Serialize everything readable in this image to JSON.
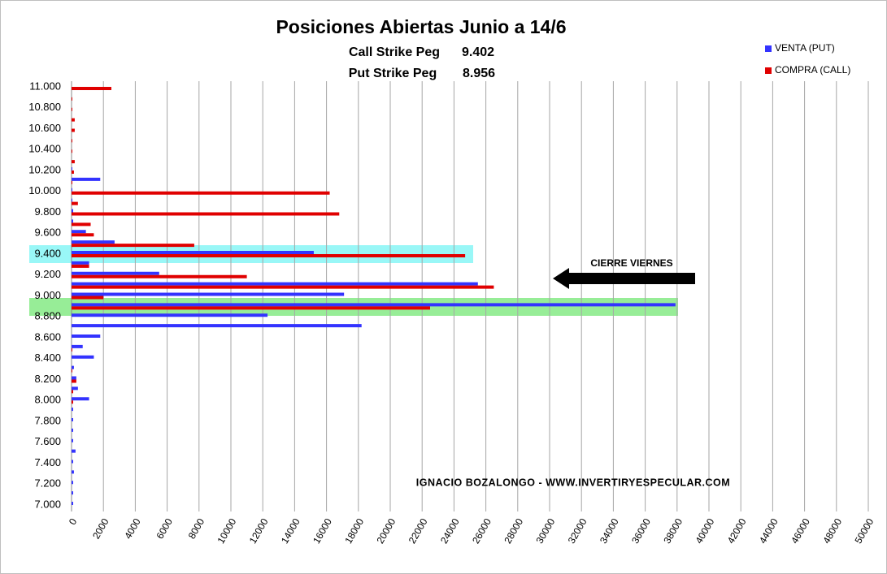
{
  "chart_data": {
    "type": "barh",
    "title": "Posiciones Abiertas Junio a 14/6",
    "call_strike_peg": {
      "label": "Call Strike Peg",
      "value": 9.402
    },
    "put_strike_peg": {
      "label": "Put Strike Peg",
      "value": 8.956
    },
    "annotation": "CIERRE VIERNES",
    "credit": "IGNACIO BOZALONGO - WWW.INVERTIRYESPECULAR.COM",
    "categories": [
      "7.000",
      null,
      "7.200",
      null,
      "7.400",
      null,
      "7.600",
      null,
      "7.800",
      null,
      "8.000",
      null,
      "8.200",
      null,
      "8.400",
      null,
      "8.600",
      null,
      "8.800",
      null,
      "9.000",
      null,
      "9.200",
      null,
      "9.400",
      null,
      "9.600",
      null,
      "9.800",
      null,
      "10.000",
      null,
      "10.200",
      null,
      "10.400",
      null,
      "10.600",
      null,
      "10.800",
      null,
      "11.000"
    ],
    "series": [
      {
        "name": "VENTA (PUT)",
        "color": "#3333ff",
        "values": [
          100,
          100,
          100,
          150,
          100,
          250,
          100,
          100,
          100,
          100,
          1100,
          400,
          300,
          150,
          1400,
          700,
          1800,
          18200,
          12300,
          37900,
          17100,
          25500,
          5500,
          1100,
          15200,
          2700,
          900,
          100,
          100,
          50,
          50,
          1800,
          50,
          0,
          0,
          0,
          0,
          0,
          0,
          0,
          0
        ]
      },
      {
        "name": "COMPRA (CALL)",
        "color": "#e00000",
        "values": [
          0,
          0,
          0,
          0,
          0,
          0,
          0,
          0,
          0,
          0,
          100,
          100,
          300,
          50,
          0,
          50,
          0,
          0,
          0,
          22500,
          2000,
          26500,
          11000,
          1100,
          24700,
          7700,
          1400,
          1200,
          16800,
          400,
          16200,
          50,
          150,
          200,
          50,
          50,
          200,
          200,
          50,
          50,
          2500
        ]
      }
    ],
    "xlim": [
      0,
      50000
    ],
    "xticks": [
      0,
      2000,
      4000,
      6000,
      8000,
      10000,
      12000,
      14000,
      16000,
      18000,
      20000,
      22000,
      24000,
      26000,
      28000,
      30000,
      32000,
      34000,
      36000,
      38000,
      40000,
      42000,
      44000,
      46000,
      48000,
      50000
    ],
    "grid": true,
    "legend": "top-right"
  }
}
